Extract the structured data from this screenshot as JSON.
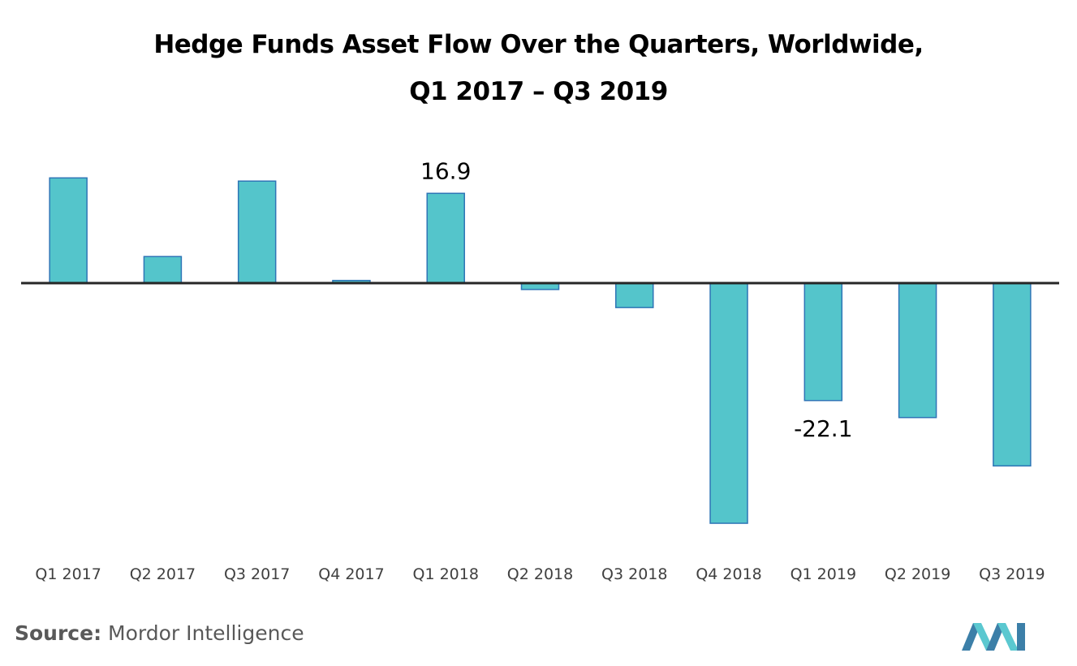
{
  "title_line1": "Hedge Funds Asset Flow Over the Quarters, Worldwide,",
  "title_line2": "Q1 2017 – Q3 2019",
  "source_label": "Source:",
  "source_name": "Mordor Intelligence",
  "colors": {
    "bar_fill": "#54C5CB",
    "bar_stroke": "#2E75B6",
    "axis": "#262626",
    "logo_dark": "#3C7FA8",
    "logo_light": "#5BC8D0"
  },
  "chart_data": {
    "type": "bar",
    "categories": [
      "Q1 2017",
      "Q2 2017",
      "Q3 2017",
      "Q4 2017",
      "Q1 2018",
      "Q2 2018",
      "Q3 2018",
      "Q4 2018",
      "Q1 2019",
      "Q2 2019",
      "Q3 2019"
    ],
    "values": [
      19.8,
      5.0,
      19.2,
      0.5,
      16.9,
      -1.2,
      -4.6,
      -45.2,
      -22.1,
      -25.3,
      -34.4
    ],
    "data_labels": [
      {
        "category": "Q1 2018",
        "text": "16.9"
      },
      {
        "category": "Q1 2019",
        "text": "-22.1"
      }
    ],
    "ylim": [
      -50,
      25
    ],
    "grid": false,
    "xlabel": "",
    "ylabel": ""
  }
}
